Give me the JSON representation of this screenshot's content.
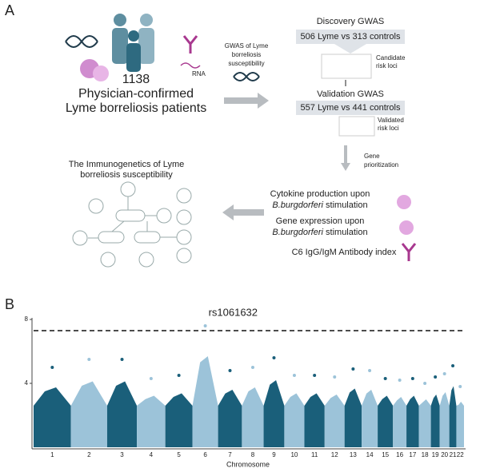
{
  "panel_a": {
    "label": "A",
    "cohort": {
      "count": "1138",
      "line1": "Physician-confirmed",
      "line2": "Lyme borreliosis patients",
      "rna": "RNA"
    },
    "arrow_text": [
      "GWAS of Lyme",
      "borreliosis",
      "susceptibility"
    ],
    "discovery": {
      "title": "Discovery GWAS",
      "box": "506 Lyme vs 313 controls",
      "note": [
        "Candidate",
        "risk loci"
      ]
    },
    "validation": {
      "title": "Validation   GWAS",
      "box": "557 Lyme vs 441 controls",
      "note": [
        "Validated",
        "risk loci"
      ]
    },
    "prioritization": [
      "Gene",
      "prioritization"
    ],
    "network_title": [
      "The Immunogenetics of Lyme",
      "borreliosis susceptibility"
    ],
    "cytokine": [
      "Cytokine production upon",
      "B.burgdorferi",
      " stimulation"
    ],
    "expression": [
      "Gene expression upon",
      "B.burgdorferi",
      " stimulation"
    ],
    "antibody": "C6 IgG/IgM Antibody index"
  },
  "chart_data": {
    "type": "manhattan",
    "label": "B",
    "x_label": "Chromosome",
    "categories": [
      "1",
      "2",
      "3",
      "4",
      "5",
      "6",
      "7",
      "8",
      "9",
      "10",
      "11",
      "12",
      "13",
      "14",
      "15",
      "16",
      "17",
      "18",
      "19",
      "20",
      "21",
      "22"
    ],
    "values": [
      5.0,
      5.5,
      5.5,
      4.3,
      4.5,
      7.6,
      4.8,
      5.0,
      5.6,
      4.5,
      4.5,
      4.4,
      4.9,
      4.8,
      4.3,
      4.2,
      4.3,
      4.0,
      4.4,
      4.6,
      5.1,
      3.8
    ],
    "colors": [
      "#1a5f7a",
      "#9cc3d9"
    ],
    "threshold": 7.3,
    "annotation": "rs1061632",
    "ylim": [
      0,
      8
    ],
    "yticks": [
      4,
      8
    ]
  }
}
